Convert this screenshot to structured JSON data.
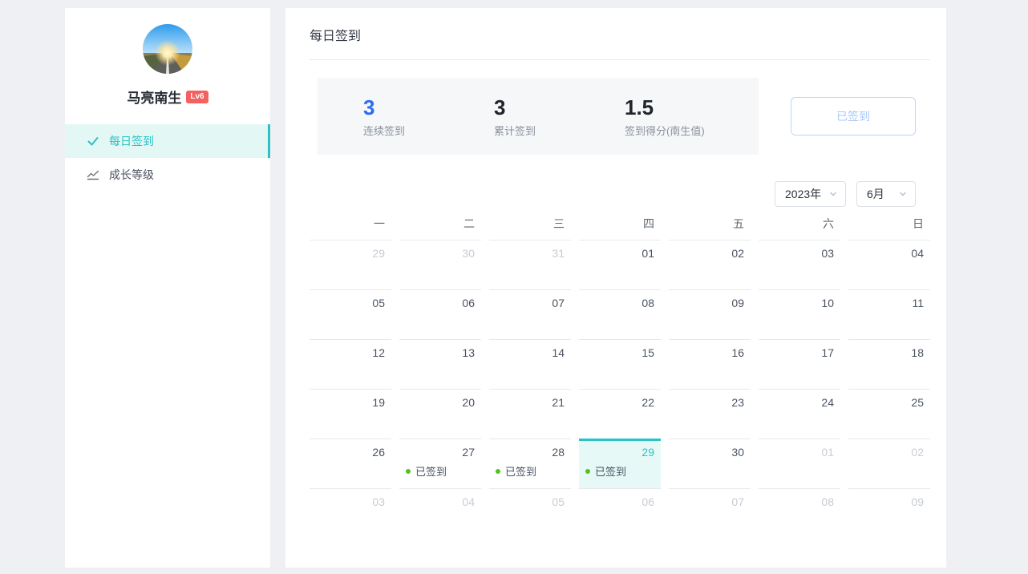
{
  "sidebar": {
    "user": {
      "name": "马亮南生",
      "level": "Lv6"
    },
    "nav": [
      {
        "label": "每日签到",
        "icon": "check-icon",
        "active": true
      },
      {
        "label": "成长等级",
        "icon": "growth-chart-icon",
        "active": false
      }
    ]
  },
  "main": {
    "title": "每日签到",
    "stats": [
      {
        "value": "3",
        "label": "连续签到"
      },
      {
        "value": "3",
        "label": "累计签到"
      },
      {
        "value": "1.5",
        "label": "签到得分(南生值)"
      }
    ],
    "checkin_button_label": "已签到",
    "year_select": "2023年",
    "month_select": "6月",
    "calendar": {
      "weekdays": [
        "一",
        "二",
        "三",
        "四",
        "五",
        "六",
        "日"
      ],
      "checked_label": "已签到",
      "weeks": [
        [
          {
            "day": "29",
            "muted": true
          },
          {
            "day": "30",
            "muted": true
          },
          {
            "day": "31",
            "muted": true
          },
          {
            "day": "01"
          },
          {
            "day": "02"
          },
          {
            "day": "03"
          },
          {
            "day": "04"
          }
        ],
        [
          {
            "day": "05"
          },
          {
            "day": "06"
          },
          {
            "day": "07"
          },
          {
            "day": "08"
          },
          {
            "day": "09"
          },
          {
            "day": "10"
          },
          {
            "day": "11"
          }
        ],
        [
          {
            "day": "12"
          },
          {
            "day": "13"
          },
          {
            "day": "14"
          },
          {
            "day": "15"
          },
          {
            "day": "16"
          },
          {
            "day": "17"
          },
          {
            "day": "18"
          }
        ],
        [
          {
            "day": "19"
          },
          {
            "day": "20"
          },
          {
            "day": "21"
          },
          {
            "day": "22"
          },
          {
            "day": "23"
          },
          {
            "day": "24"
          },
          {
            "day": "25"
          }
        ],
        [
          {
            "day": "26"
          },
          {
            "day": "27",
            "checked": true
          },
          {
            "day": "28",
            "checked": true
          },
          {
            "day": "29",
            "checked": true,
            "selected": true
          },
          {
            "day": "30"
          },
          {
            "day": "01",
            "muted": true
          },
          {
            "day": "02",
            "muted": true
          }
        ],
        [
          {
            "day": "03",
            "muted": true
          },
          {
            "day": "04",
            "muted": true
          },
          {
            "day": "05",
            "muted": true
          },
          {
            "day": "06",
            "muted": true
          },
          {
            "day": "07",
            "muted": true
          },
          {
            "day": "08",
            "muted": true
          },
          {
            "day": "09",
            "muted": true
          }
        ]
      ]
    }
  },
  "colors": {
    "accent_teal": "#2bc2c5",
    "accent_teal_bg": "#e3f8f4",
    "selected_cell_bg": "#e6f9f7",
    "stat_highlight_blue": "#2b6cf0",
    "checked_dot_green": "#52c41a",
    "level_badge_red": "#f56060",
    "disabled_button_blue": "#a5c7fb",
    "page_background": "#eef0f3"
  }
}
